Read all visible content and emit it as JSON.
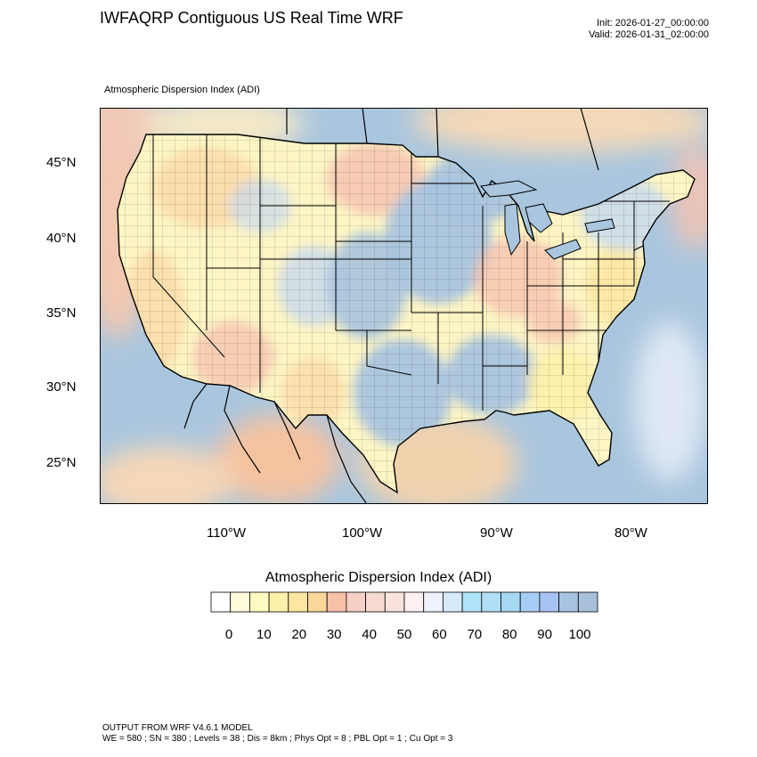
{
  "header": {
    "title": "IWFAQRP Contiguous US Real Time WRF",
    "init": "Init: 2026-01-27_00:00:00",
    "valid": "Valid: 2026-01-31_02:00:00",
    "subtitle": "Atmospheric Dispersion Index   (ADI)"
  },
  "map": {
    "lat_labels": [
      "45°N",
      "40°N",
      "35°N",
      "30°N",
      "25°N"
    ],
    "lon_labels": [
      "110°W",
      "100°W",
      "90°W",
      "80°W"
    ],
    "colors": {
      "ocean": "#a9c6de",
      "land_low": "#fdf5c4",
      "land_warm": "#fbd9a8",
      "land_pink": "#f6c3b0",
      "land_blue": "#a9c4df",
      "land_lightblue": "#c8daee",
      "borders": "#000000"
    }
  },
  "colorbar": {
    "title": "Atmospheric Dispersion Index  (ADI)",
    "ticks": [
      "0",
      "10",
      "20",
      "30",
      "40",
      "50",
      "60",
      "70",
      "80",
      "90",
      "100"
    ],
    "colors": [
      "#ffffff",
      "#fffbdb",
      "#fffac0",
      "#fdf0a8",
      "#fde6a0",
      "#fbd79a",
      "#f9c0a8",
      "#f6cfc5",
      "#f6d9d0",
      "#f9e3dc",
      "#fdf0f0",
      "#eef2fd",
      "#d6eafb",
      "#b0e4fa",
      "#b0def6",
      "#a6d8f3",
      "#a6cdf4",
      "#a7c3f4",
      "#a8c2e2",
      "#a9c0db"
    ]
  },
  "footer": {
    "line1": "OUTPUT FROM WRF V4.6.1 MODEL",
    "line2": "WE = 580 ; SN = 380 ; Levels = 38 ; Dis = 8km ; Phys Opt = 8 ; PBL Opt = 1 ; Cu Opt = 3"
  }
}
